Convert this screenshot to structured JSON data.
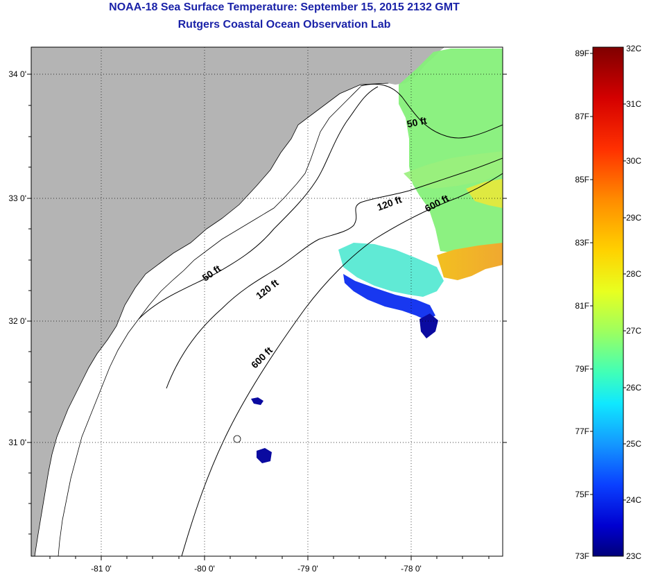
{
  "title": {
    "line1": "NOAA-18 Sea Surface Temperature:  September 15, 2015 2132 GMT",
    "line2": "Rutgers Coastal Ocean Observation Lab"
  },
  "map": {
    "lat_labels": [
      "34 0'",
      "33 0'",
      "32 0'",
      "31 0'"
    ],
    "lon_labels": [
      "-81 0'",
      "-80 0'",
      "-79 0'",
      "-78 0'"
    ],
    "contour_labels": [
      {
        "text": "50 ft",
        "id": "contour-50ft-north"
      },
      {
        "text": "120 ft",
        "id": "contour-120ft-north"
      },
      {
        "text": "600 ft",
        "id": "contour-600ft-north"
      },
      {
        "text": "50 ft",
        "id": "contour-50ft-mid"
      },
      {
        "text": "120 ft",
        "id": "contour-120ft-mid"
      },
      {
        "text": "600 ft",
        "id": "contour-600ft-south"
      }
    ],
    "colors": {
      "land": "#b4b4b4",
      "ocean": "#ffffff",
      "grid": "#000000"
    }
  },
  "colorbar": {
    "fahrenheit": [
      "89F",
      "87F",
      "85F",
      "83F",
      "81F",
      "79F",
      "77F",
      "75F",
      "73F"
    ],
    "celsius": [
      "32C",
      "31C",
      "30C",
      "29C",
      "28C",
      "27C",
      "26C",
      "25C",
      "24C",
      "23C"
    ]
  }
}
